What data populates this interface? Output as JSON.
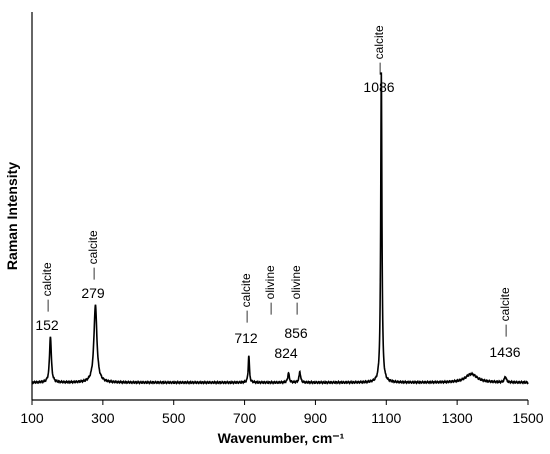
{
  "chart_data": {
    "type": "line",
    "xlabel": "Wavenumber, cm⁻¹",
    "ylabel": "Raman Intensity",
    "xlim": [
      100,
      1500
    ],
    "ylim": [
      0,
      100
    ],
    "xticks": [
      100,
      300,
      500,
      700,
      900,
      1100,
      1300,
      1500
    ],
    "grid": false,
    "baseline": 4.5,
    "peaks": [
      {
        "x": 152,
        "height": 12,
        "width": 6,
        "label": "152",
        "name": "calcite"
      },
      {
        "x": 279,
        "height": 20,
        "width": 10,
        "label": "279",
        "name": "calcite"
      },
      {
        "x": 712,
        "height": 7,
        "width": 4,
        "label": "712",
        "name": "calcite"
      },
      {
        "x": 824,
        "height": 2.5,
        "width": 5,
        "label": "824",
        "name": "olivine"
      },
      {
        "x": 856,
        "height": 2.8,
        "width": 5,
        "label": "856",
        "name": "olivine"
      },
      {
        "x": 1086,
        "height": 80,
        "width": 4,
        "label": "1086",
        "name": "calcite"
      },
      {
        "x": 1436,
        "height": 1.5,
        "width": 6,
        "label": "1436",
        "name": "calcite"
      }
    ],
    "broad_features": [
      {
        "x": 1340,
        "height": 2.2,
        "width": 40
      }
    ]
  }
}
